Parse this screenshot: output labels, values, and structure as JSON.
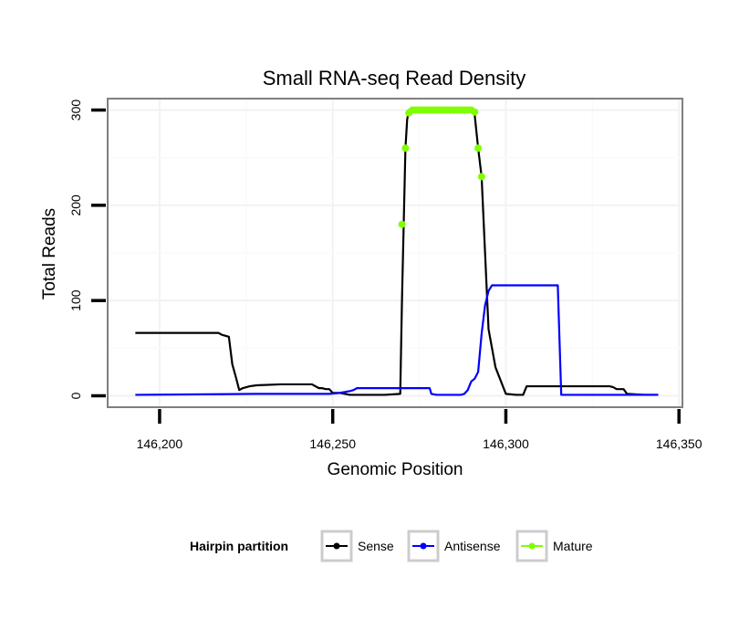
{
  "chart_data": {
    "type": "line",
    "title": "Small RNA-seq Read Density",
    "xlabel": "Genomic Position",
    "ylabel": "Total Reads",
    "xlim": [
      146185,
      146351
    ],
    "ylim": [
      -12,
      312
    ],
    "x_ticks": [
      146200,
      146250,
      146300,
      146350
    ],
    "x_tick_labels": [
      "146,200",
      "146,250",
      "146,300",
      "146,350"
    ],
    "y_ticks": [
      0,
      100,
      200,
      300
    ],
    "y_tick_labels": [
      "0",
      "100",
      "200",
      "300"
    ],
    "grid": true,
    "legend": {
      "title": "Hairpin partition",
      "placement": "bottom",
      "entries": [
        "Sense",
        "Antisense",
        "Mature"
      ]
    },
    "series": [
      {
        "name": "Sense",
        "color": "#000000",
        "style": "line",
        "x": [
          146193,
          146200,
          146210,
          146217,
          146218,
          146220,
          146221,
          146222,
          146223,
          146224,
          146226,
          146228,
          146235,
          146240,
          146242,
          146244,
          146246,
          146247,
          146248,
          146249,
          146250,
          146252,
          146255,
          146260,
          146265,
          146269.5,
          146270,
          146270.5,
          146271,
          146271.5,
          146272,
          146274,
          146280,
          146285,
          146289,
          146290,
          146291,
          146292,
          146293,
          146294,
          146295,
          146296,
          146297,
          146300,
          146303,
          146304,
          146305,
          146306,
          146315,
          146320,
          146330,
          146331,
          146332,
          146333,
          146334,
          146335,
          146340,
          146344
        ],
        "y": [
          66,
          66,
          66,
          66,
          64,
          62,
          33,
          20,
          6,
          8,
          10,
          11,
          12,
          12,
          12,
          12,
          8,
          8,
          7,
          7,
          3,
          3,
          1,
          1,
          1,
          2,
          100,
          180,
          260,
          290,
          300,
          300,
          300,
          300,
          300,
          300,
          295,
          260,
          230,
          150,
          70,
          50,
          30,
          2,
          1,
          1,
          1,
          10,
          10,
          10,
          10,
          9,
          7,
          7,
          7,
          2,
          1,
          1
        ]
      },
      {
        "name": "Antisense",
        "color": "#0000ff",
        "style": "line",
        "x": [
          146193,
          146228,
          146249,
          146252,
          146255,
          146256,
          146257,
          146260,
          146270,
          146278,
          146278.5,
          146280,
          146285,
          146287,
          146288,
          146289,
          146290,
          146291,
          146292,
          146293,
          146294,
          146295,
          146296,
          146297,
          146300,
          146305,
          146310,
          146314,
          146315,
          146316,
          146320,
          146330,
          146334,
          146340,
          146344
        ],
        "y": [
          1,
          2,
          2,
          3,
          5,
          6,
          8,
          8,
          8,
          8,
          2,
          1,
          1,
          1,
          2,
          6,
          15,
          18,
          25,
          65,
          95,
          110,
          116,
          116,
          116,
          116,
          116,
          116,
          116,
          1,
          1,
          1,
          1,
          1,
          1
        ]
      },
      {
        "name": "Mature",
        "color": "#7fff00",
        "style": "points",
        "x": [
          146270,
          146271,
          146272,
          146273,
          146274,
          146275,
          146276,
          146277,
          146278,
          146279,
          146280,
          146281,
          146282,
          146283,
          146284,
          146285,
          146286,
          146287,
          146288,
          146289,
          146290,
          146291,
          146292,
          146293
        ],
        "y": [
          180,
          260,
          297,
          300,
          300,
          300,
          300,
          300,
          300,
          300,
          300,
          300,
          300,
          300,
          300,
          300,
          300,
          300,
          300,
          300,
          300,
          298,
          260,
          230
        ]
      }
    ]
  }
}
